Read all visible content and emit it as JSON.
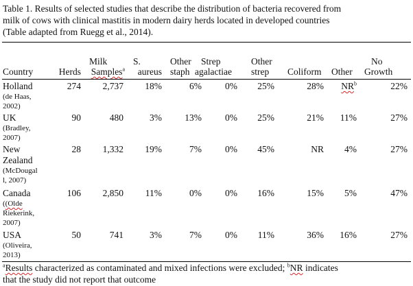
{
  "caption": {
    "line1": "Table 1.  Results of selected studies that describe the distribution of bacteria recovered from",
    "line2": "milk of cows with clinical mastitis in modern dairy herds located in developed countries",
    "line3": "(Table adapted from Ruegg et al., 2014)."
  },
  "headers": {
    "country": "Country",
    "herds": "Herds",
    "milk_samples_top": "Milk",
    "milk_samples_bottom": "Samples",
    "milk_samples_sup": "a",
    "s_aureus_top": "S.",
    "s_aureus_bottom": "aureus",
    "other_staph_top": "Other",
    "other_staph_bottom": "staph",
    "strep_ag_top": "Strep",
    "strep_ag_bottom": "agalactiae",
    "other_strep_top": "Other",
    "other_strep_bottom": "strep",
    "coliform": "Coliform",
    "other": "Other",
    "no_growth_top": "No",
    "no_growth_bottom": "Growth"
  },
  "rows": [
    {
      "country": "Holland",
      "ref": [
        "(de Haas,",
        "2002)"
      ],
      "herds": "274",
      "samples": "2,737",
      "s_aureus": "18%",
      "other_staph": "6%",
      "strep_ag": "0%",
      "other_strep": "25%",
      "coliform": "28%",
      "other": "NR",
      "other_sup": "b",
      "no_growth": "22%"
    },
    {
      "country": "UK",
      "ref": [
        "(Bradley,",
        "2007)"
      ],
      "herds": "90",
      "samples": "480",
      "s_aureus": "3%",
      "other_staph": "13%",
      "strep_ag": "0%",
      "other_strep": "25%",
      "coliform": "21%",
      "other": "11%",
      "other_sup": "",
      "no_growth": "27%"
    },
    {
      "country": "New",
      "country2": "Zealand",
      "ref": [
        "(McDougal",
        "l, 2007)"
      ],
      "herds": "28",
      "samples": "1,332",
      "s_aureus": "19%",
      "other_staph": "7%",
      "strep_ag": "0%",
      "other_strep": "45%",
      "coliform": "NR",
      "other": "4%",
      "other_sup": "",
      "no_growth": "27%"
    },
    {
      "country": "Canada",
      "ref": [
        "(Olde",
        "Riekerink,",
        "2007)"
      ],
      "herds": "106",
      "samples": "2,850",
      "s_aureus": "11%",
      "other_staph": "0%",
      "strep_ag": "0%",
      "other_strep": "16%",
      "coliform": "15%",
      "other": "5%",
      "other_sup": "",
      "no_growth": "47%"
    },
    {
      "country": "USA",
      "ref": [
        "(Oliveira,",
        "2013)"
      ],
      "herds": "50",
      "samples": "741",
      "s_aureus": "3%",
      "other_staph": "7%",
      "strep_ag": "0%",
      "other_strep": "11%",
      "coliform": "36%",
      "other": "16%",
      "other_sup": "",
      "no_growth": "27%"
    }
  ],
  "footnote": {
    "sup_a": "a",
    "a_word": "Results",
    "a_rest": " characterized as contaminated and mixed infections were excluded;  ",
    "sup_b": "b",
    "b_word": "NR",
    "b_rest": " indicates",
    "line2": "that the study did not report that outcome"
  }
}
